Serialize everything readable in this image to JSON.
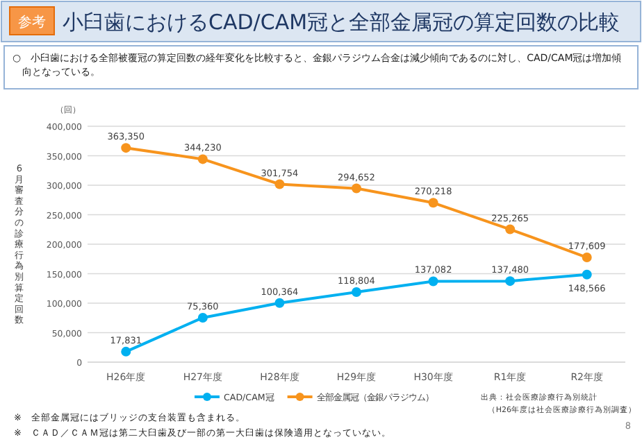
{
  "chart_data": {
    "type": "line",
    "title": "小臼歯におけるCAD/CAM冠と全部金属冠の算定回数の比較",
    "subtitle": "○　小臼歯における全部被覆冠の算定回数の経年変化を比較すると、金銀パラジウム合金は減少傾向であるのに対し、CAD/CAM冠は増加傾向となっている。",
    "ylabel": "6月審査分の診療行為別算定回数",
    "categories": [
      "H26年度",
      "H27年度",
      "H28年度",
      "H29年度",
      "H30年度",
      "R1年度",
      "R2年度"
    ],
    "series": [
      {
        "name": "CAD/CAM冠",
        "color": "#00b0f0",
        "values": [
          17831,
          75360,
          100364,
          118804,
          137082,
          137480,
          148566
        ],
        "value_labels": [
          "17,831",
          "75,360",
          "100,364",
          "118,804",
          "137,082",
          "137,480",
          "148,566"
        ]
      },
      {
        "name": "全部金属冠（金銀パラジウム）",
        "color": "#f7941d",
        "values": [
          363350,
          344230,
          301754,
          294652,
          270218,
          225265,
          177609
        ],
        "value_labels": [
          "363,350",
          "344,230",
          "301,754",
          "294,652",
          "270,218",
          "225,265",
          "177,609"
        ]
      }
    ],
    "ylim": [
      0,
      400000
    ],
    "yticks": [
      {
        "value": 0,
        "label": "0"
      },
      {
        "value": 50000,
        "label": "50,000"
      },
      {
        "value": 100000,
        "label": "100,000"
      },
      {
        "value": 150000,
        "label": "150,000"
      },
      {
        "value": 200000,
        "label": "200,000"
      },
      {
        "value": 250000,
        "label": "250,000"
      },
      {
        "value": 300000,
        "label": "300,000"
      },
      {
        "value": 350000,
        "label": "350,000"
      },
      {
        "value": 400000,
        "label": "400,000"
      }
    ],
    "grid": "y",
    "legend": "bottom",
    "marker": "circle",
    "line_style": "solid",
    "annotations": [
      "参考",
      "（回）",
      "出典：社会医療診療行為別統計",
      "（H26年度は社会医療診療行為別調査）",
      "※　全部金属冠にはブリッジの支台装置も含まれる。",
      "※　ＣＡＤ／ＣＡＭ冠は第二大臼歯及び一部の第一大臼歯は保険適用となっていない。",
      "8"
    ]
  }
}
